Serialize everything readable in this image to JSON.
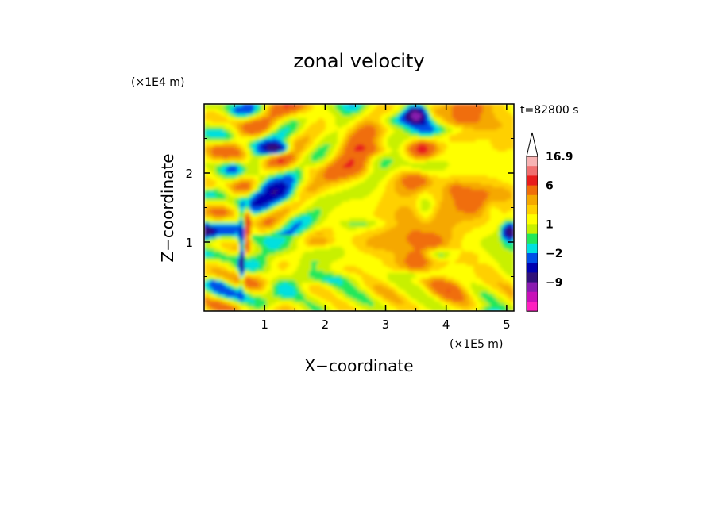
{
  "chart_data": {
    "type": "heatmap",
    "title": "zonal velocity",
    "xlabel": "X−coordinate",
    "ylabel": "Z−coordinate",
    "x_unit_label": "(×1E5 m)",
    "y_unit_label": "(×1E4 m)",
    "time_label": "t=82800 s",
    "xlim": [
      0,
      5.12
    ],
    "ylim": [
      0,
      3.0
    ],
    "xticks": [
      {
        "value": 1,
        "label": "1"
      },
      {
        "value": 2,
        "label": "2"
      },
      {
        "value": 3,
        "label": "3"
      },
      {
        "value": 4,
        "label": "4"
      },
      {
        "value": 5,
        "label": "5"
      }
    ],
    "yticks": [
      {
        "value": 1,
        "label": "1"
      },
      {
        "value": 2,
        "label": "2"
      }
    ],
    "colorbar": {
      "levels": [
        {
          "upper": 16.9,
          "color": "#f7b3b3"
        },
        {
          "upper": 12,
          "color": "#f07070"
        },
        {
          "upper": 9,
          "color": "#e81c1c"
        },
        {
          "upper": 6,
          "color": "#f06e0a"
        },
        {
          "upper": 4,
          "color": "#f5a800"
        },
        {
          "upper": 3,
          "color": "#ffd000"
        },
        {
          "upper": 2,
          "color": "#ffff00"
        },
        {
          "upper": 1,
          "color": "#c8f000"
        },
        {
          "upper": 0,
          "color": "#22e85a"
        },
        {
          "upper": -1,
          "color": "#00e0e0"
        },
        {
          "upper": -2,
          "color": "#0050e8"
        },
        {
          "upper": -4,
          "color": "#0000b0"
        },
        {
          "upper": -6,
          "color": "#30107a"
        },
        {
          "upper": -9,
          "color": "#8a1ab0"
        },
        {
          "upper": -12,
          "color": "#c810b8"
        },
        {
          "upper": -15,
          "color": "#ff20c0"
        }
      ],
      "tick_labels": [
        {
          "value": 16.9,
          "label": "16.9"
        },
        {
          "value": 6,
          "label": "6"
        },
        {
          "value": 1,
          "label": "1"
        },
        {
          "value": -2,
          "label": "−2"
        },
        {
          "value": -9,
          "label": "−9"
        }
      ],
      "overflow_arrow": true
    }
  }
}
